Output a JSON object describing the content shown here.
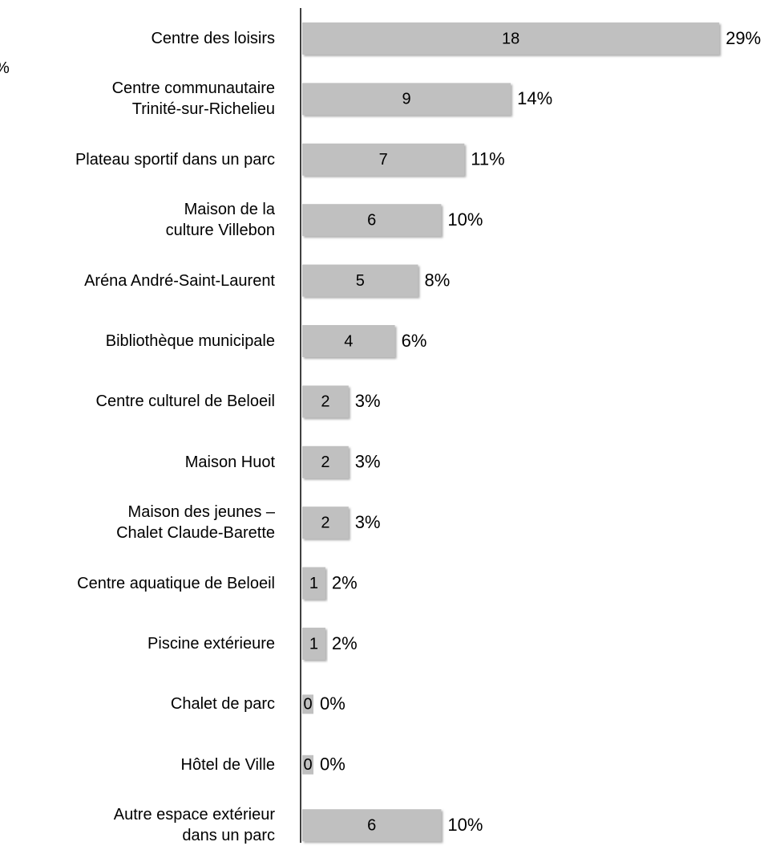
{
  "chart_data": {
    "type": "barh",
    "annotation": "%",
    "categories": [
      "Centre des loisirs",
      "Centre communautaire\nTrinité-sur-Richelieu",
      "Plateau sportif dans un parc",
      "Maison de la\nculture Villebon",
      "Aréna André-Saint-Laurent",
      "Bibliothèque municipale",
      "Centre culturel de Beloeil",
      "Maison Huot",
      "Maison des jeunes –\nChalet Claude-Barette",
      "Centre aquatique de Beloeil",
      "Piscine extérieure",
      "Chalet de parc",
      "Hôtel de Ville",
      "Autre espace extérieur\ndans un parc"
    ],
    "values": [
      18,
      9,
      7,
      6,
      5,
      4,
      2,
      2,
      2,
      1,
      1,
      0,
      0,
      6
    ],
    "percent_labels": [
      "29%",
      "14%",
      "11%",
      "10%",
      "8%",
      "6%",
      "3%",
      "3%",
      "3%",
      "2%",
      "2%",
      "0%",
      "0%",
      "10%"
    ],
    "color": "#c0c0c0"
  }
}
